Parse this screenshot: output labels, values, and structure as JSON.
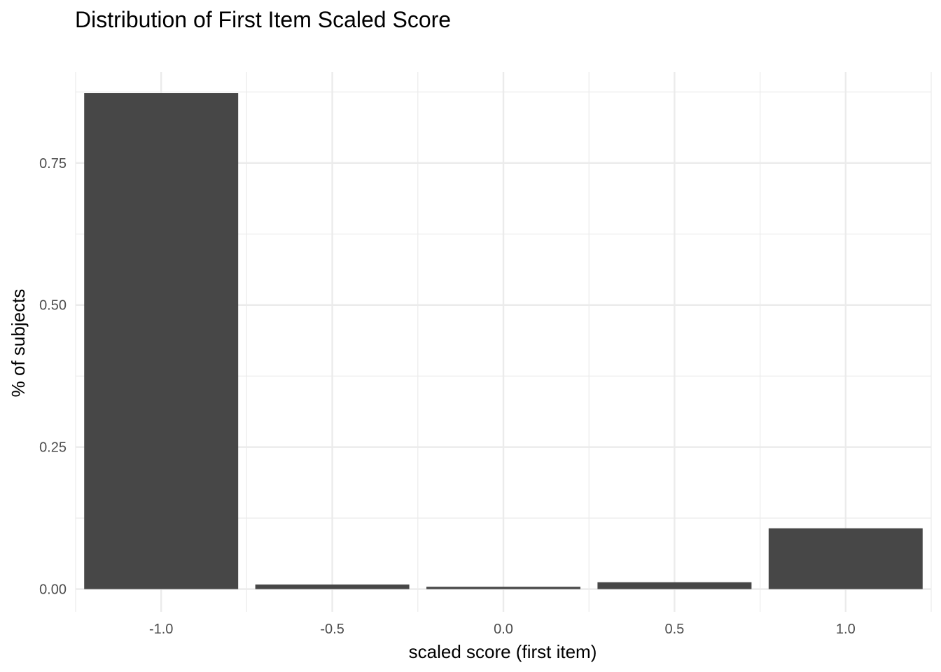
{
  "chart_data": {
    "type": "bar",
    "title": "Distribution of First Item Scaled Score",
    "xlabel": "scaled score (first item)",
    "ylabel": "% of subjects",
    "categories": [
      "-1.0",
      "-0.5",
      "0.0",
      "0.5",
      "1.0"
    ],
    "x": [
      -1.0,
      -0.5,
      0.0,
      0.5,
      1.0
    ],
    "values": [
      0.873,
      0.008,
      0.004,
      0.012,
      0.107
    ],
    "xlim": [
      -1.25,
      1.25
    ],
    "ylim": [
      -0.04,
      0.91
    ],
    "x_ticks": [
      -1.0,
      -0.5,
      0.0,
      0.5,
      1.0
    ],
    "x_tick_labels": [
      "-1.0",
      "-0.5",
      "0.0",
      "0.5",
      "1.0"
    ],
    "y_ticks": [
      0.0,
      0.25,
      0.5,
      0.75
    ],
    "y_tick_labels": [
      "0.00",
      "0.25",
      "0.50",
      "0.75"
    ],
    "bar_color": "#474747",
    "grid": true,
    "grid_color": "#ebebeb",
    "legend": "none"
  }
}
